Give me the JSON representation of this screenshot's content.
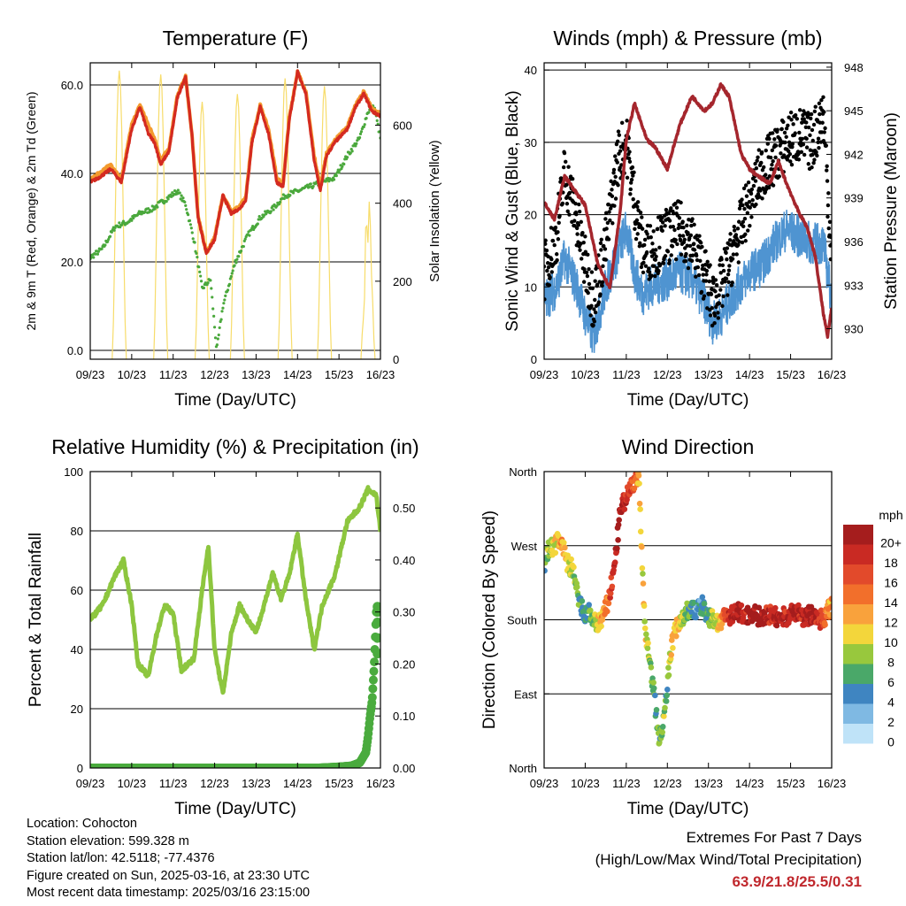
{
  "chart_data": [
    {
      "type": "line",
      "title": "Temperature (F)",
      "xlabel": "Time (Day/UTC)",
      "ylabel": "2m & 9m T (Red, Orange) & 2m Td (Green)",
      "ylabel_right": "Solar Insolation (Yellow)",
      "x_ticks": [
        "09/23",
        "10/23",
        "11/23",
        "12/23",
        "13/23",
        "14/23",
        "15/23",
        "16/23"
      ],
      "ylim": [
        -2,
        65
      ],
      "y_ticks": [
        "0.0",
        "20.0",
        "40.0",
        "60.0"
      ],
      "y_ticks_values": [
        0,
        20,
        40,
        60
      ],
      "ylim_right": [
        0,
        760
      ],
      "y_ticks_right": [
        "0",
        "200",
        "400",
        "600"
      ],
      "y_ticks_right_values": [
        0,
        200,
        400,
        600
      ],
      "grid": "horizontal",
      "series": [
        {
          "name": "2m T",
          "color": "#d42a20",
          "x": [
            0,
            0.2,
            0.5,
            0.75,
            1,
            1.2,
            1.4,
            1.55,
            1.7,
            1.9,
            2.1,
            2.3,
            2.45,
            2.6,
            2.8,
            3.0,
            3.2,
            3.4,
            3.6,
            3.75,
            3.9,
            4.1,
            4.3,
            4.5,
            4.65,
            4.8,
            5.0,
            5.2,
            5.4,
            5.55,
            5.7,
            5.9,
            6.2,
            6.4,
            6.6,
            6.8,
            7.0
          ],
          "y": [
            38,
            39,
            41,
            38,
            50,
            55,
            49,
            47,
            42,
            45,
            57,
            62,
            49,
            30,
            22,
            25,
            35,
            31,
            32,
            34,
            47,
            55,
            49,
            38,
            37,
            52,
            63,
            58,
            43,
            36,
            44,
            47,
            50,
            55,
            58,
            54,
            53
          ]
        },
        {
          "name": "9m T",
          "color": "#f39a2e",
          "x": [
            0,
            0.2,
            0.5,
            0.75,
            1,
            1.2,
            1.4,
            1.55,
            1.7,
            1.9,
            2.1,
            2.3,
            2.45,
            2.6,
            2.8,
            3.0,
            3.2,
            3.4,
            3.6,
            3.75,
            3.9,
            4.1,
            4.3,
            4.5,
            4.65,
            4.8,
            5.0,
            5.2,
            5.4,
            5.55,
            5.7,
            5.9,
            6.2,
            6.4,
            6.6,
            6.8,
            7.0
          ],
          "y": [
            38.5,
            40,
            42,
            38.5,
            51,
            55.5,
            51,
            48,
            43,
            45.5,
            57.5,
            62,
            49,
            30.5,
            22,
            25.5,
            35,
            31.5,
            32.5,
            34.5,
            47.5,
            55.5,
            50,
            39,
            37.5,
            52.5,
            63,
            58.5,
            44,
            37,
            44.5,
            47.5,
            50.5,
            55.5,
            58.5,
            54.5,
            53.5
          ]
        },
        {
          "name": "2m Td",
          "color": "#4aa83c",
          "x": [
            0,
            0.3,
            0.6,
            0.9,
            1.2,
            1.5,
            1.8,
            2.1,
            2.3,
            2.5,
            2.7,
            2.9,
            3.05,
            3.2,
            3.5,
            3.8,
            4.1,
            4.4,
            4.7,
            5.0,
            5.3,
            5.6,
            5.9,
            6.2,
            6.5,
            6.7,
            6.85,
            7.0
          ],
          "y": [
            21,
            23,
            28,
            29,
            31,
            32,
            34,
            36,
            33,
            25,
            14,
            16,
            0,
            10,
            20,
            26,
            30,
            32,
            35,
            36,
            37,
            38,
            39,
            44,
            48,
            54,
            55,
            48
          ]
        },
        {
          "name": "Solar Insolation",
          "axis": "right",
          "color": "#f7dc6a",
          "peaks_x": [
            0.7,
            1.7,
            2.7,
            3.55,
            4.7,
            5.65,
            6.7
          ],
          "peaks_y": [
            740,
            730,
            660,
            680,
            720,
            700,
            500
          ]
        }
      ]
    },
    {
      "type": "line",
      "title": "Winds (mph) & Pressure (mb)",
      "xlabel": "Time (Day/UTC)",
      "ylabel": "Sonic Wind & Gust (Blue, Black)",
      "ylabel_right": "Station Pressure (Maroon)",
      "x_ticks": [
        "09/23",
        "10/23",
        "11/23",
        "12/23",
        "13/23",
        "14/23",
        "15/23",
        "16/23"
      ],
      "ylim": [
        0,
        41
      ],
      "y_ticks": [
        "0",
        "10",
        "20",
        "30",
        "40"
      ],
      "y_ticks_values": [
        0,
        10,
        20,
        30,
        40
      ],
      "ylim_right": [
        927.9,
        948.3
      ],
      "y_ticks_right": [
        "930",
        "933",
        "936",
        "939",
        "942",
        "945",
        "948"
      ],
      "y_ticks_right_values": [
        930,
        933,
        936,
        939,
        942,
        945,
        948
      ],
      "grid": "horizontal",
      "series": [
        {
          "name": "Sonic Wind",
          "color": "#4f94d1",
          "x": [
            0,
            0.3,
            0.5,
            0.8,
            1.0,
            1.2,
            1.5,
            1.8,
            2.0,
            2.2,
            2.4,
            2.6,
            3.0,
            3.3,
            3.6,
            3.9,
            4.1,
            4.3,
            4.5,
            5.0,
            5.3,
            5.6,
            5.9,
            6.2,
            6.5,
            6.8,
            7.0
          ],
          "y": [
            8,
            10,
            14,
            10,
            6,
            3,
            10,
            15,
            18,
            12,
            9,
            10,
            11,
            12,
            11,
            8,
            5,
            6,
            8,
            12,
            13,
            16,
            18,
            17,
            16,
            16,
            8
          ]
        },
        {
          "name": "Gust",
          "color": "#000000",
          "x": [
            0,
            0.3,
            0.5,
            0.8,
            1.0,
            1.2,
            1.5,
            1.8,
            2.0,
            2.2,
            2.4,
            2.6,
            3.0,
            3.3,
            3.6,
            3.9,
            4.1,
            4.3,
            4.5,
            5.0,
            5.3,
            5.6,
            5.9,
            6.2,
            6.5,
            6.8,
            7.0
          ],
          "y": [
            12,
            17,
            26,
            19,
            13,
            8,
            16,
            28,
            30,
            22,
            15,
            15,
            17,
            18,
            16,
            12,
            8,
            10,
            13,
            22,
            26,
            28,
            30,
            31,
            30,
            34,
            14
          ]
        },
        {
          "name": "Station Pressure",
          "axis": "right",
          "color": "#a5262d",
          "x": [
            0,
            0.25,
            0.5,
            0.75,
            1.0,
            1.3,
            1.6,
            1.85,
            2.0,
            2.2,
            2.5,
            2.7,
            3.0,
            3.3,
            3.6,
            3.9,
            4.1,
            4.3,
            4.5,
            4.8,
            5.0,
            5.2,
            5.5,
            5.7,
            5.9,
            6.2,
            6.4,
            6.6,
            6.8,
            6.9,
            7.0
          ],
          "y": [
            938.7,
            937.5,
            940.5,
            939.5,
            938.5,
            934.5,
            932.8,
            938,
            943,
            945.5,
            943,
            942.5,
            941,
            944,
            946,
            945,
            945.5,
            946.8,
            946,
            942,
            941,
            940.5,
            940,
            941.5,
            940,
            938,
            937,
            935,
            931,
            929.5,
            931.5
          ]
        }
      ]
    },
    {
      "type": "line",
      "title": "Relative Humidity (%) & Precipitation (in)",
      "xlabel": "Time (Day/UTC)",
      "ylabel": "Percent & Total Rainfall",
      "x_ticks": [
        "09/23",
        "10/23",
        "11/23",
        "12/23",
        "13/23",
        "14/23",
        "15/23",
        "16/23"
      ],
      "ylim": [
        0,
        100
      ],
      "y_ticks": [
        "0",
        "20",
        "40",
        "60",
        "80",
        "100"
      ],
      "y_ticks_values": [
        0,
        20,
        40,
        60,
        80,
        100
      ],
      "ylim_right": [
        0,
        0.57
      ],
      "y_ticks_right": [
        "0.00",
        "0.10",
        "0.20",
        "0.30",
        "0.40",
        "0.50"
      ],
      "y_ticks_right_values": [
        0,
        0.1,
        0.2,
        0.3,
        0.4,
        0.5
      ],
      "grid": "horizontal",
      "series": [
        {
          "name": "Relative Humidity",
          "color": "#8dc63f",
          "x": [
            0,
            0.3,
            0.6,
            0.8,
            1.0,
            1.15,
            1.4,
            1.6,
            1.8,
            2.0,
            2.2,
            2.5,
            2.7,
            2.85,
            3.0,
            3.2,
            3.4,
            3.6,
            3.8,
            4.0,
            4.2,
            4.4,
            4.6,
            4.8,
            5.0,
            5.2,
            5.4,
            5.6,
            5.9,
            6.2,
            6.5,
            6.7,
            6.9,
            7.0
          ],
          "y": [
            50,
            55,
            65,
            70,
            55,
            35,
            31,
            45,
            55,
            52,
            33,
            37,
            60,
            75,
            40,
            25,
            45,
            55,
            50,
            46,
            55,
            66,
            57,
            65,
            79,
            57,
            40,
            55,
            65,
            83,
            88,
            94,
            92,
            80
          ]
        },
        {
          "name": "Total Precipitation",
          "axis": "right",
          "color": "#4aab3e",
          "x": [
            0,
            1,
            2,
            3,
            4,
            5,
            5.5,
            6.0,
            6.3,
            6.5,
            6.65,
            6.7,
            6.75,
            6.8,
            6.85,
            6.9,
            7.0
          ],
          "y": [
            0,
            0,
            0,
            0,
            0,
            0,
            0,
            0.002,
            0.004,
            0.01,
            0.03,
            0.06,
            0.1,
            0.13,
            0.2,
            0.3,
            0.31
          ]
        }
      ]
    },
    {
      "type": "scatter",
      "title": "Wind Direction",
      "xlabel": "Time (Day/UTC)",
      "ylabel": "Direction (Colored By Speed)",
      "x_ticks": [
        "09/23",
        "10/23",
        "11/23",
        "12/23",
        "13/23",
        "14/23",
        "15/23",
        "16/23"
      ],
      "ylim": [
        0,
        360
      ],
      "y_ticks": [
        "North",
        "East",
        "South",
        "West",
        "North"
      ],
      "y_ticks_values": [
        0,
        90,
        180,
        270,
        360
      ],
      "grid": "horizontal",
      "legend_title": "mph",
      "legend_position": "right",
      "color_scale": [
        {
          "label": "20+",
          "color": "#a51d1d"
        },
        {
          "label": "18",
          "color": "#c92a23"
        },
        {
          "label": "16",
          "color": "#e24a2b"
        },
        {
          "label": "14",
          "color": "#f26f2b"
        },
        {
          "label": "12",
          "color": "#f9a23c"
        },
        {
          "label": "10",
          "color": "#f3d63b"
        },
        {
          "label": "8",
          "color": "#98c83d"
        },
        {
          "label": "6",
          "color": "#4aa869"
        },
        {
          "label": "4",
          "color": "#3f85c1"
        },
        {
          "label": "2",
          "color": "#7fb9e3"
        },
        {
          "label": "0",
          "color": "#bfe3f8"
        }
      ],
      "series": [
        {
          "name": "Direction",
          "x": [
            0,
            0.1,
            0.25,
            0.4,
            0.55,
            0.7,
            0.85,
            1.0,
            1.1,
            1.25,
            1.4,
            1.55,
            1.7,
            1.85,
            2.0,
            2.15,
            2.3,
            2.45,
            2.6,
            2.7,
            2.8,
            2.9,
            3.0,
            3.1,
            3.25,
            3.4,
            3.55,
            3.7,
            3.85,
            4.0,
            4.1,
            4.2,
            4.35,
            4.5,
            4.7,
            4.9,
            5.1,
            5.3,
            5.5,
            5.7,
            5.9,
            6.1,
            6.3,
            6.5,
            6.7,
            6.85,
            7.0
          ],
          "y": [
            245,
            265,
            270,
            280,
            250,
            240,
            200,
            185,
            190,
            175,
            180,
            200,
            240,
            310,
            330,
            345,
            355,
            170,
            120,
            80,
            30,
            60,
            100,
            150,
            175,
            185,
            195,
            190,
            200,
            180,
            185,
            175,
            180,
            185,
            190,
            185,
            188,
            182,
            186,
            182,
            184,
            190,
            183,
            186,
            180,
            185,
            200
          ],
          "speed": [
            6,
            8,
            10,
            12,
            10,
            8,
            6,
            4,
            6,
            8,
            12,
            14,
            18,
            20,
            18,
            16,
            12,
            10,
            8,
            6,
            6,
            8,
            6,
            10,
            12,
            8,
            6,
            4,
            4,
            6,
            8,
            10,
            14,
            18,
            20,
            18,
            20,
            20,
            18,
            20,
            18,
            20,
            18,
            20,
            18,
            14,
            12
          ]
        }
      ]
    }
  ],
  "info": {
    "location": "Location: Cohocton",
    "elevation": "Station elevation: 599.328 m",
    "latlon": "Station lat/lon: 42.5118; -77.4376",
    "created": "Figure created on Sun, 2025-03-16, at 23:30 UTC",
    "timestamp": "Most recent data timestamp: 2025/03/16 23:15:00"
  },
  "extremes": {
    "title": "Extremes For Past 7 Days",
    "subtitle": "(High/Low/Max Wind/Total Precipitation)",
    "values": "63.9/21.8/25.5/0.31"
  }
}
